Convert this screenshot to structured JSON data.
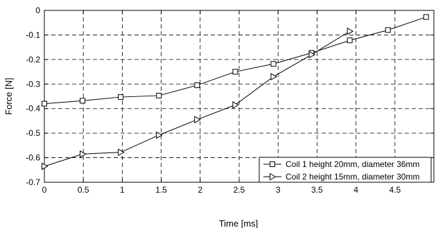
{
  "chart_data": {
    "type": "line",
    "xlabel": "Time [ms]",
    "ylabel": "Force [N]",
    "xlim": [
      0,
      5
    ],
    "ylim": [
      -0.7,
      0
    ],
    "xticks": [
      0,
      0.5,
      1,
      1.5,
      2,
      2.5,
      3,
      3.5,
      4,
      4.5
    ],
    "xtick_labels": [
      "0",
      "0.5",
      "1",
      "1.5",
      "2",
      "2.5",
      "3",
      "3.5",
      "4",
      "4.5"
    ],
    "yticks": [
      0,
      -0.1,
      -0.2,
      -0.3,
      -0.4,
      -0.5,
      -0.6,
      -0.7
    ],
    "ytick_labels": [
      "0",
      "-0.1",
      "-0.2",
      "-0.3",
      "-0.4",
      "-0.5",
      "-0.6",
      "-0.7"
    ],
    "grid": true,
    "legend_position": "bottom-right",
    "series": [
      {
        "name": "Coil 1 height 20mm, diameter 36mm",
        "marker": "square",
        "x": [
          0,
          0.49,
          0.98,
          1.47,
          1.96,
          2.45,
          2.94,
          3.43,
          3.92,
          4.41,
          4.9
        ],
        "y": [
          -0.38,
          -0.368,
          -0.353,
          -0.347,
          -0.305,
          -0.25,
          -0.218,
          -0.173,
          -0.122,
          -0.08,
          -0.027
        ]
      },
      {
        "name": "Coil 2 height 15mm, diameter 30mm",
        "marker": "triangle-right",
        "x": [
          0,
          0.49,
          0.98,
          1.47,
          1.96,
          2.45,
          2.94,
          3.43,
          3.92
        ],
        "y": [
          -0.635,
          -0.585,
          -0.578,
          -0.508,
          -0.445,
          -0.385,
          -0.27,
          -0.18,
          -0.085
        ]
      }
    ]
  }
}
